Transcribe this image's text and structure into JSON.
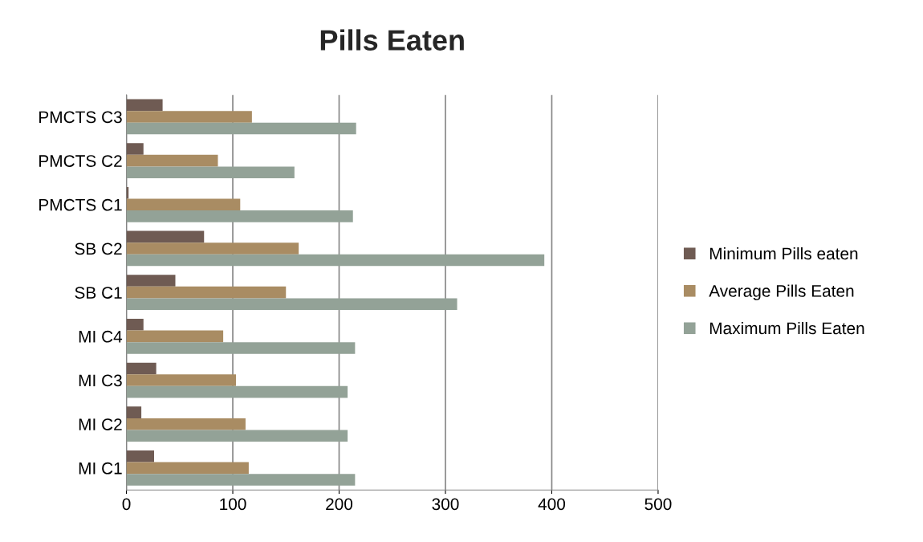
{
  "chart_data": {
    "type": "bar",
    "title": "Pills Eaten",
    "orientation": "horizontal",
    "categories": [
      "PMCTS C3",
      "PMCTS C2",
      "PMCTS C1",
      "SB C2",
      "SB C1",
      "MI C4",
      "MI C3",
      "MI C2",
      "MI C1"
    ],
    "series": [
      {
        "name": "Minimum Pills eaten",
        "color": "#6f5b53",
        "values": [
          34,
          16,
          2,
          73,
          46,
          16,
          28,
          14,
          26
        ]
      },
      {
        "name": "Average Pills Eaten",
        "color": "#a98c63",
        "values": [
          118,
          86,
          107,
          162,
          150,
          91,
          103,
          112,
          115
        ]
      },
      {
        "name": "Maximum Pills Eaten",
        "color": "#93a297",
        "values": [
          216,
          158,
          213,
          393,
          311,
          215,
          208,
          208,
          215
        ]
      }
    ],
    "xlim": [
      0,
      500
    ],
    "xticks": [
      0,
      100,
      200,
      300,
      400,
      500
    ],
    "grid": "x",
    "legend": "right"
  }
}
